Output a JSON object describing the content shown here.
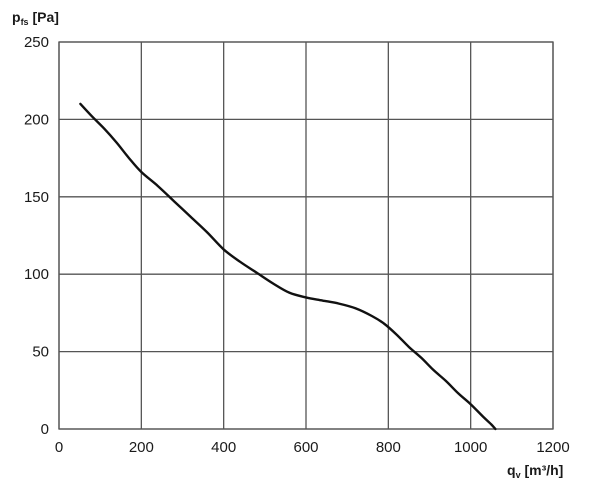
{
  "chart_data": {
    "type": "line",
    "title": "",
    "ylabel": {
      "main": "p",
      "sub": "fs",
      "unit": " [Pa]"
    },
    "xlabel": {
      "main": "q",
      "sub": "v",
      "unit": " [m³/h]"
    },
    "xlim": [
      0,
      1200
    ],
    "ylim": [
      0,
      250
    ],
    "xticks": [
      0,
      200,
      400,
      600,
      800,
      1000,
      1200
    ],
    "yticks": [
      0,
      50,
      100,
      150,
      200,
      250
    ],
    "grid": true,
    "legend": "none",
    "series": [
      {
        "color": "#111111",
        "x": [
          52,
          80,
          110,
          140,
          170,
          200,
          240,
          280,
          320,
          360,
          400,
          440,
          480,
          520,
          560,
          600,
          640,
          680,
          720,
          760,
          790,
          820,
          850,
          880,
          910,
          940,
          970,
          1000,
          1030,
          1050,
          1060
        ],
        "y": [
          210,
          202,
          194,
          185,
          175,
          166,
          157,
          147,
          137,
          127,
          116,
          108,
          101,
          94,
          88,
          85,
          83,
          81,
          78,
          73,
          68,
          61,
          53,
          46,
          38,
          31,
          23,
          16,
          8,
          3,
          0
        ]
      }
    ]
  }
}
